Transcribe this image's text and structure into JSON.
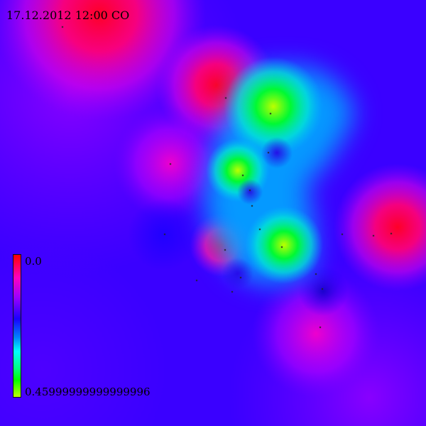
{
  "title": "17.12.2012 12:00 CO",
  "legend": {
    "min_label": "0.0",
    "max_label": "0.45999999999999996",
    "colors": [
      "#ff0000",
      "#ff00c0",
      "#9a00ff",
      "#1a00ff",
      "#0080ff",
      "#00ffff",
      "#00ff80",
      "#00ff00",
      "#c0ff00"
    ]
  }
}
